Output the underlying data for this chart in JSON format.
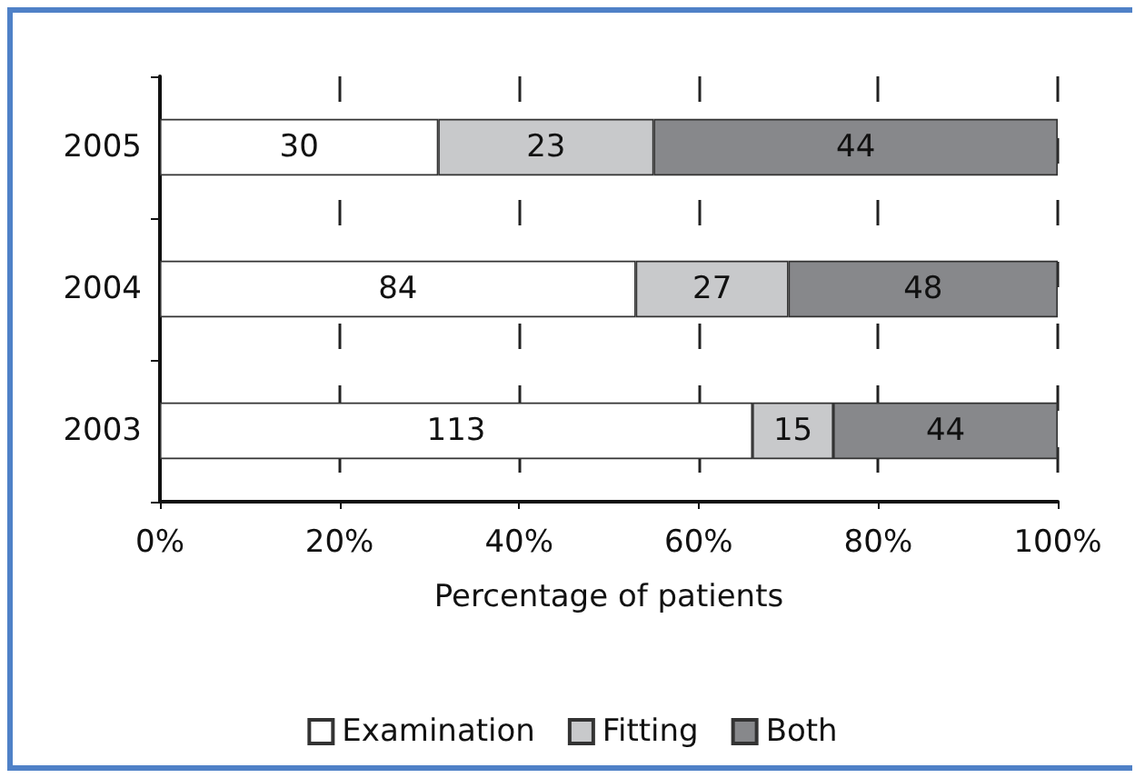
{
  "chart_data": {
    "type": "bar",
    "orientation": "horizontal",
    "stacked": true,
    "xlabel": "Percentage of patients",
    "categories": [
      "2005",
      "2004",
      "2003"
    ],
    "series": [
      {
        "name": "Examination",
        "color": "#ffffff",
        "values": [
          31,
          53,
          66
        ]
      },
      {
        "name": "Fitting",
        "color": "#c8c9cb",
        "values": [
          24,
          17,
          9
        ]
      },
      {
        "name": "Both",
        "color": "#87888b",
        "values": [
          45,
          30,
          25
        ]
      }
    ],
    "annotations": [
      "30",
      "23",
      "44",
      "84",
      "27",
      "48",
      "113",
      "15",
      "44"
    ],
    "xlim": [
      0,
      100
    ],
    "xticks": [
      {
        "value": 0,
        "label": "0%"
      },
      {
        "value": 20,
        "label": "20%"
      },
      {
        "value": 40,
        "label": "40%"
      },
      {
        "value": 60,
        "label": "60%"
      },
      {
        "value": 80,
        "label": "80%"
      },
      {
        "value": 100,
        "label": "100%"
      }
    ],
    "grid": "x",
    "legend": "bottom"
  }
}
